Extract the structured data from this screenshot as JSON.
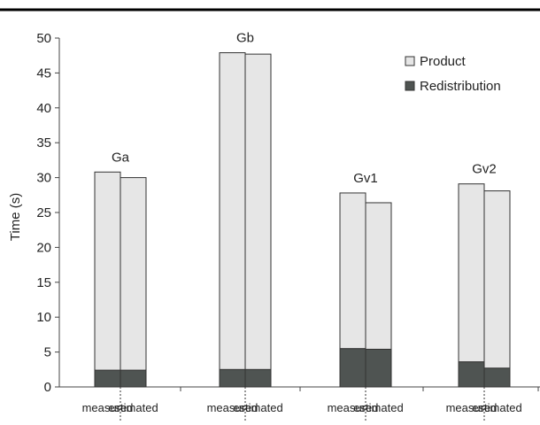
{
  "chart_data": {
    "type": "bar",
    "stacked": true,
    "title": "",
    "xlabel": "",
    "ylabel": "Time (s)",
    "ylim": [
      0,
      50
    ],
    "yticks": [
      0,
      5,
      10,
      15,
      20,
      25,
      30,
      35,
      40,
      45,
      50
    ],
    "groups": [
      "Ga",
      "Gb",
      "Gv1",
      "Gv2"
    ],
    "subcategories": [
      "measured",
      "estimated"
    ],
    "series": [
      {
        "name": "Redistribution",
        "color": "#4f5452",
        "values": [
          [
            2.4,
            2.4
          ],
          [
            2.5,
            2.5
          ],
          [
            5.5,
            5.4
          ],
          [
            3.6,
            2.7
          ]
        ]
      },
      {
        "name": "Product",
        "color": "#e6e6e6",
        "values": [
          [
            28.4,
            27.6
          ],
          [
            45.4,
            45.2
          ],
          [
            22.3,
            21.0
          ],
          [
            25.5,
            25.4
          ]
        ]
      }
    ],
    "totals": [
      [
        30.8,
        30.0
      ],
      [
        47.9,
        47.7
      ],
      [
        27.8,
        26.4
      ],
      [
        29.1,
        28.1
      ]
    ],
    "legend": {
      "position": "top-right",
      "entries": [
        {
          "label": "Product",
          "color": "#e6e6e6"
        },
        {
          "label": "Redistribution",
          "color": "#4f5452"
        }
      ]
    },
    "grid": false
  }
}
